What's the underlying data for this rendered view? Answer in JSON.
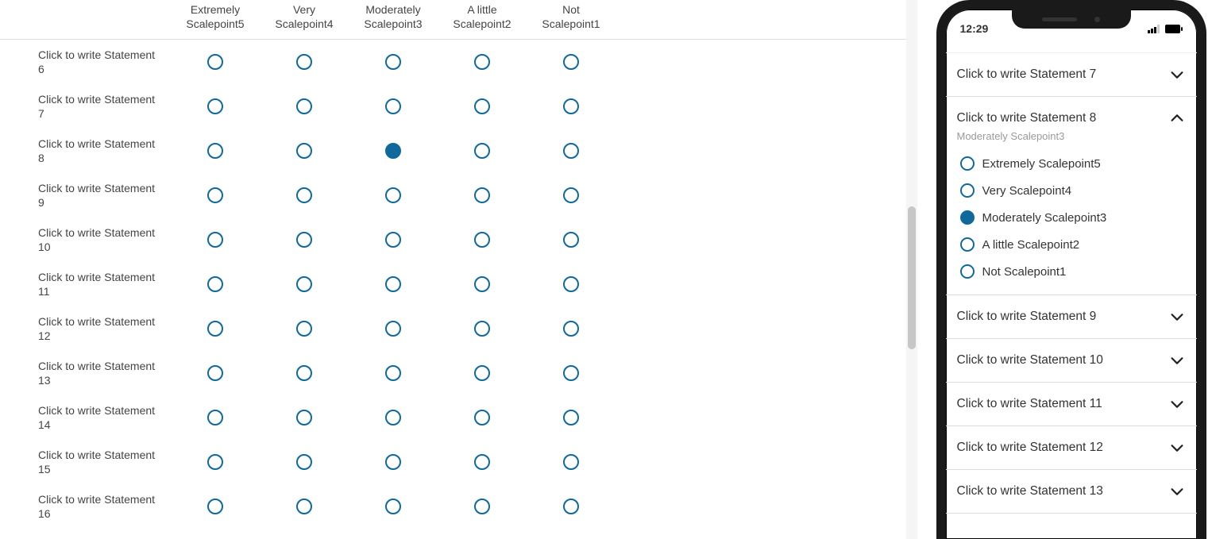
{
  "colors": {
    "radio_border": "#10689b",
    "radio_fill": "#10689b",
    "divider": "#dcdcdc",
    "muted": "#9a9a9a"
  },
  "scalepoints": [
    {
      "line1": "Extremely",
      "line2": "Scalepoint5",
      "full": "Extremely Scalepoint5"
    },
    {
      "line1": "Very",
      "line2": "Scalepoint4",
      "full": "Very Scalepoint4"
    },
    {
      "line1": "Moderately",
      "line2": "Scalepoint3",
      "full": "Moderately Scalepoint3"
    },
    {
      "line1": "A little",
      "line2": "Scalepoint2",
      "full": "A little Scalepoint2"
    },
    {
      "line1": "Not",
      "line2": "Scalepoint1",
      "full": "Not Scalepoint1"
    }
  ],
  "rows": [
    {
      "label": "Click to write Statement 6",
      "selected": null
    },
    {
      "label": "Click to write Statement 7",
      "selected": null
    },
    {
      "label": "Click to write Statement 8",
      "selected": 2
    },
    {
      "label": "Click to write Statement 9",
      "selected": null
    },
    {
      "label": "Click to write Statement 10",
      "selected": null
    },
    {
      "label": "Click to write Statement 11",
      "selected": null
    },
    {
      "label": "Click to write Statement 12",
      "selected": null
    },
    {
      "label": "Click to write Statement 13",
      "selected": null
    },
    {
      "label": "Click to write Statement 14",
      "selected": null
    },
    {
      "label": "Click to write Statement 15",
      "selected": null
    },
    {
      "label": "Click to write Statement 16",
      "selected": null
    }
  ],
  "phone": {
    "time": "12:29",
    "items": [
      {
        "label": "Click to write Statement 7",
        "expanded": false,
        "sub": null,
        "selected": null
      },
      {
        "label": "Click to write Statement 8",
        "expanded": true,
        "sub": "Moderately Scalepoint3",
        "selected": 2
      },
      {
        "label": "Click to write Statement 9",
        "expanded": false,
        "sub": null,
        "selected": null
      },
      {
        "label": "Click to write Statement 10",
        "expanded": false,
        "sub": null,
        "selected": null
      },
      {
        "label": "Click to write Statement 11",
        "expanded": false,
        "sub": null,
        "selected": null
      },
      {
        "label": "Click to write Statement 12",
        "expanded": false,
        "sub": null,
        "selected": null
      },
      {
        "label": "Click to write Statement 13",
        "expanded": false,
        "sub": null,
        "selected": null
      }
    ]
  }
}
